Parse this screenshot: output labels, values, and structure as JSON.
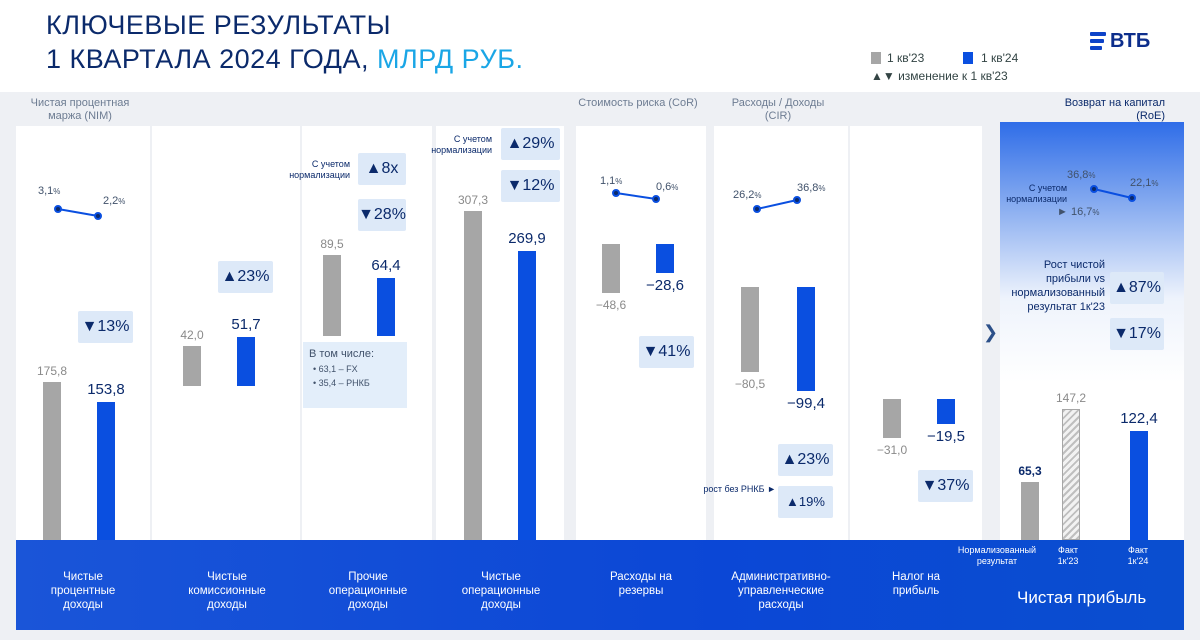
{
  "header": {
    "title_line1": "КЛЮЧЕВЫЕ РЕЗУЛЬТАТЫ",
    "title_line2": "1 КВАРТАЛА 2024 ГОДА,",
    "title_accent": "МЛРД РУБ.",
    "legend_prev": "1 кв'23",
    "legend_curr": "1 кв'24",
    "legend_change": "▲▼ изменение к 1 кв'23",
    "logo": "ВТБ"
  },
  "colors": {
    "prev": "#a6a6a6",
    "curr": "#0a4fe0",
    "navy": "#0b2a6b",
    "accent": "#1aa6e6"
  },
  "metrics": {
    "nim": {
      "title": "Чистая процентная маржа (NIM)",
      "prev": "3,1",
      "curr": "2,2",
      "unit": "%"
    },
    "cor": {
      "title": "Стоимость риска (CoR)",
      "prev": "1,1",
      "curr": "0,6",
      "unit": "%"
    },
    "cir": {
      "title": "Расходы / Доходы (CIR)",
      "prev": "26,2",
      "curr": "36,8",
      "unit": "%"
    },
    "roe": {
      "title": "Возврат на капитал (RoE)",
      "prev": "36,8",
      "curr": "22,1",
      "norm_label": "С учетом нормализации",
      "norm": "16,7",
      "unit": "%"
    }
  },
  "chart_data": {
    "type": "bar",
    "categories": [
      "Чистые процентные доходы",
      "Чистые комиссионные доходы",
      "Прочие операционные доходы",
      "Чистые операционные доходы",
      "Расходы на резервы",
      "Административно-управленческие расходы",
      "Налог на прибыль",
      "Чистая прибыль"
    ],
    "series": [
      {
        "name": "1 кв'23",
        "values": [
          175.8,
          42.0,
          89.5,
          307.3,
          -48.6,
          -80.5,
          -31.0,
          147.2
        ]
      },
      {
        "name": "1 кв'24",
        "values": [
          153.8,
          51.7,
          64.4,
          269.9,
          -28.6,
          -99.4,
          -19.5,
          122.4
        ]
      }
    ],
    "value_labels": {
      "prev": [
        "175,8",
        "42,0",
        "89,5",
        "307,3",
        "−48,6",
        "−80,5",
        "−31,0",
        "147,2"
      ],
      "curr": [
        "153,8",
        "51,7",
        "64,4",
        "269,9",
        "−28,6",
        "−99,4",
        "−19,5",
        "122,4"
      ]
    },
    "normalized_net_profit": {
      "label": "Нормализованный результат",
      "value": 65.3,
      "text": "65,3"
    },
    "changes": [
      "▼13%",
      "▲23%",
      "▼28%",
      "▼12%",
      "▼41%",
      "▲23%",
      "▼37%",
      "▼17%"
    ]
  },
  "annotations": {
    "norm_label": "С учетом нормализации",
    "other_norm": "▲8x",
    "oper_norm": "▲29%",
    "cir_no_rnkb_label": "рост без РНКБ ►",
    "cir_no_rnkb": "▲19%",
    "profit_growth_label": "Рост чистой прибыли vs нормализованный результат 1к'23",
    "profit_growth": "▲87%",
    "callout_title": "В том числе:",
    "callout_items": [
      "63,1 – FX",
      "35,4 – РНКБ"
    ]
  },
  "labels": {
    "nii": "Чистые процентные доходы",
    "fee": "Чистые комиссионные доходы",
    "other": "Прочие операционные доходы",
    "oper": "Чистые операционные доходы",
    "prov": "Расходы на резервы",
    "admin": "Административно-управленческие расходы",
    "tax": "Налог на прибыль",
    "np": "Чистая прибыль",
    "np_norm": "Нормализованный результат",
    "np_prev": "Факт 1к'23",
    "np_curr": "Факт 1к'24"
  }
}
